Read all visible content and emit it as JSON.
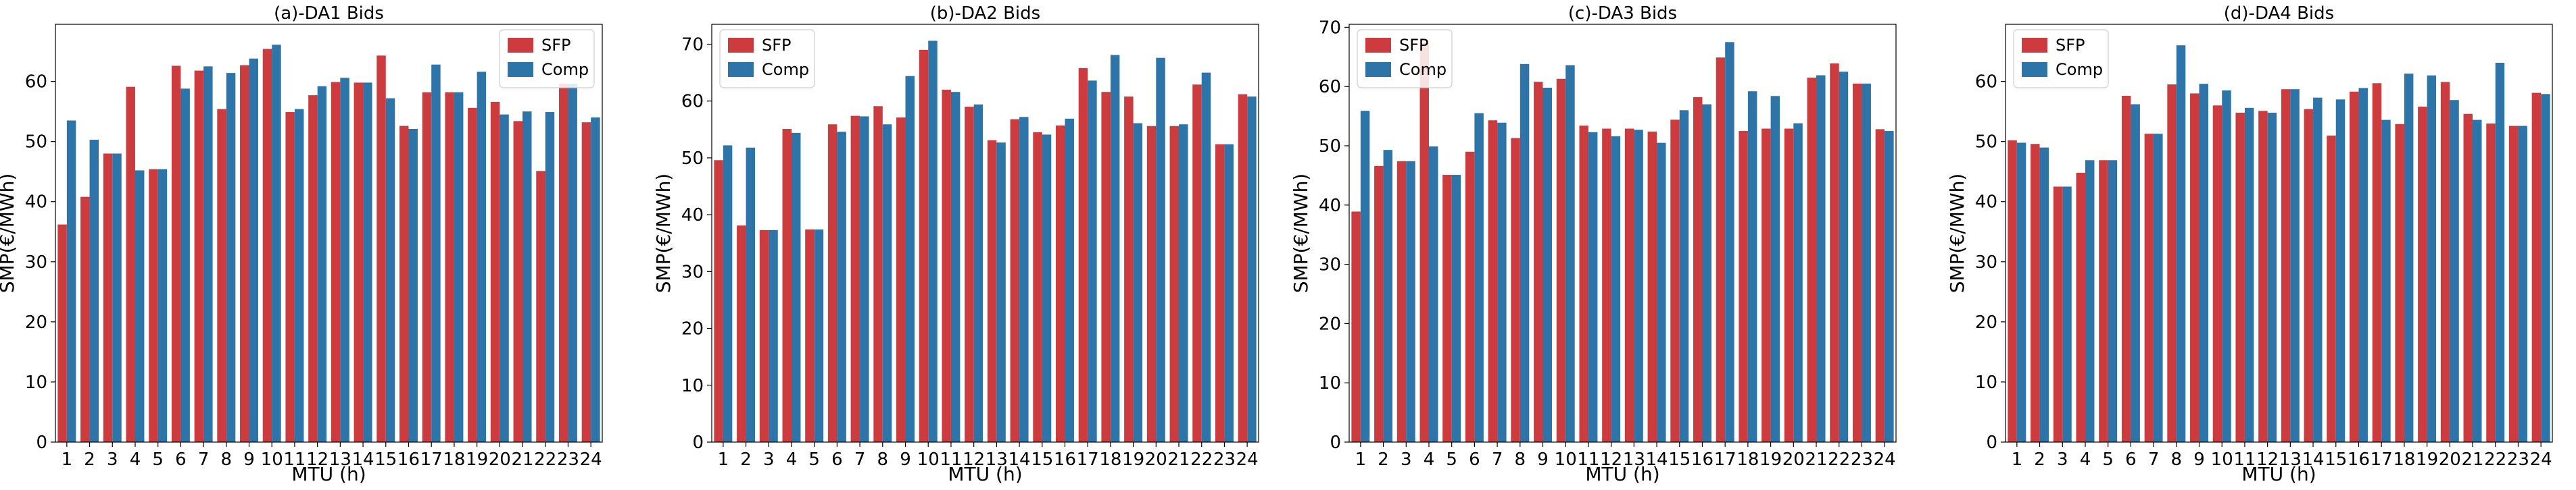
{
  "colors": {
    "sfp": "#cc3b3d",
    "comp": "#2d74a8"
  },
  "chart_data": [
    {
      "type": "bar",
      "title": "(a)-DA1 Bids",
      "xlabel": "MTU (h)",
      "ylabel": "SMP(€/MWh)",
      "categories": [
        "1",
        "2",
        "3",
        "4",
        "5",
        "6",
        "7",
        "8",
        "9",
        "10",
        "11",
        "12",
        "13",
        "14",
        "15",
        "16",
        "17",
        "18",
        "19",
        "20",
        "21",
        "22",
        "23",
        "24"
      ],
      "ylim": [
        0,
        69.5
      ],
      "yticks": [
        0,
        10,
        20,
        30,
        40,
        50,
        60
      ],
      "legend_position": "top-right",
      "series": [
        {
          "name": "SFP",
          "values": [
            36.2,
            40.8,
            48.0,
            59.1,
            45.4,
            62.6,
            61.8,
            55.4,
            62.7,
            65.4,
            54.9,
            57.7,
            59.9,
            59.8,
            64.3,
            52.6,
            58.2,
            58.2,
            55.6,
            56.6,
            53.4,
            45.1,
            59.6,
            53.2
          ]
        },
        {
          "name": "Comp",
          "values": [
            53.5,
            50.3,
            48.0,
            45.2,
            45.4,
            58.8,
            62.5,
            61.4,
            63.8,
            66.1,
            55.4,
            59.2,
            60.6,
            59.8,
            57.2,
            52.1,
            62.8,
            58.2,
            61.6,
            54.5,
            55.0,
            54.9,
            59.6,
            54.0
          ]
        }
      ]
    },
    {
      "type": "bar",
      "title": "(b)-DA2 Bids",
      "xlabel": "MTU (h)",
      "ylabel": "SMP(€/MWh)",
      "categories": [
        "1",
        "2",
        "3",
        "4",
        "5",
        "6",
        "7",
        "8",
        "9",
        "10",
        "11",
        "12",
        "13",
        "14",
        "15",
        "16",
        "17",
        "18",
        "19",
        "20",
        "21",
        "22",
        "23",
        "24"
      ],
      "ylim": [
        0,
        73.5
      ],
      "yticks": [
        0,
        10,
        20,
        30,
        40,
        50,
        60,
        70
      ],
      "legend_position": "top-left",
      "series": [
        {
          "name": "SFP",
          "values": [
            49.6,
            38.1,
            37.3,
            55.1,
            37.4,
            55.9,
            57.4,
            59.1,
            57.1,
            69.0,
            62.0,
            59.0,
            53.1,
            56.8,
            54.5,
            55.7,
            65.8,
            61.6,
            60.8,
            55.6,
            55.6,
            62.9,
            52.4,
            61.2
          ]
        },
        {
          "name": "Comp",
          "values": [
            52.2,
            51.8,
            37.3,
            54.4,
            37.4,
            54.6,
            57.3,
            55.9,
            64.4,
            70.6,
            61.6,
            59.4,
            52.7,
            57.2,
            54.1,
            56.9,
            63.6,
            68.1,
            56.1,
            67.6,
            55.9,
            65.0,
            52.4,
            60.8
          ]
        }
      ]
    },
    {
      "type": "bar",
      "title": "(c)-DA3 Bids",
      "xlabel": "MTU (h)",
      "ylabel": "SMP(€/MWh)",
      "categories": [
        "1",
        "2",
        "3",
        "4",
        "5",
        "6",
        "7",
        "8",
        "9",
        "10",
        "11",
        "12",
        "13",
        "14",
        "15",
        "16",
        "17",
        "18",
        "19",
        "20",
        "21",
        "22",
        "23",
        "24"
      ],
      "ylim": [
        0,
        70.5
      ],
      "yticks": [
        0,
        10,
        20,
        30,
        40,
        50,
        60,
        70
      ],
      "legend_position": "top-left",
      "series": [
        {
          "name": "SFP",
          "values": [
            38.9,
            46.6,
            47.4,
            67.3,
            45.1,
            49.0,
            54.3,
            51.3,
            60.8,
            61.3,
            53.4,
            52.9,
            52.9,
            52.4,
            54.4,
            58.2,
            64.9,
            52.5,
            52.9,
            52.9,
            61.5,
            63.9,
            60.5,
            52.8
          ]
        },
        {
          "name": "Comp",
          "values": [
            55.9,
            49.3,
            47.4,
            49.9,
            45.1,
            55.5,
            53.9,
            63.8,
            59.8,
            63.6,
            52.3,
            51.6,
            52.7,
            50.5,
            56.0,
            57.0,
            67.5,
            59.2,
            58.4,
            53.8,
            61.9,
            62.5,
            60.5,
            52.5
          ]
        }
      ]
    },
    {
      "type": "bar",
      "title": "(d)-DA4 Bids",
      "xlabel": "MTU (h)",
      "ylabel": "SMP(€/MWh)",
      "categories": [
        "1",
        "2",
        "3",
        "4",
        "5",
        "6",
        "7",
        "8",
        "9",
        "10",
        "11",
        "12",
        "13",
        "14",
        "15",
        "16",
        "17",
        "18",
        "19",
        "20",
        "21",
        "22",
        "23",
        "24"
      ],
      "ylim": [
        0,
        69.5
      ],
      "yticks": [
        0,
        10,
        20,
        30,
        40,
        50,
        60
      ],
      "legend_position": "top-left",
      "series": [
        {
          "name": "SFP",
          "values": [
            50.2,
            49.6,
            42.5,
            44.8,
            46.9,
            57.6,
            51.3,
            59.5,
            58.0,
            56.0,
            54.8,
            55.1,
            58.7,
            55.4,
            51.0,
            58.3,
            59.7,
            52.9,
            55.8,
            59.9,
            54.6,
            53.0,
            52.6,
            58.1
          ]
        },
        {
          "name": "Comp",
          "values": [
            49.8,
            49.0,
            42.5,
            46.9,
            46.9,
            56.2,
            51.3,
            66.0,
            59.6,
            58.5,
            55.6,
            54.8,
            58.7,
            57.3,
            57.0,
            58.9,
            53.6,
            61.3,
            61.0,
            56.9,
            53.6,
            63.1,
            52.6,
            57.9
          ]
        }
      ]
    }
  ]
}
